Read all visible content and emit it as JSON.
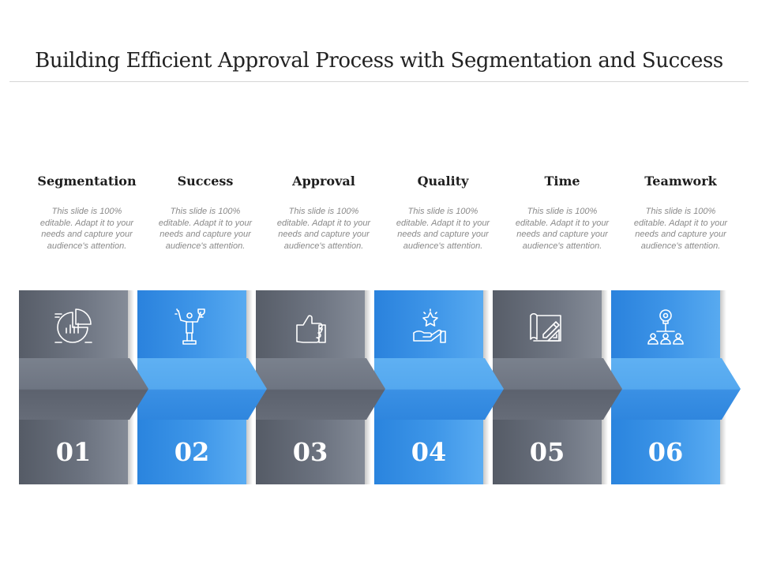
{
  "title": "Building Efficient Approval Process with Segmentation and Success",
  "colors": {
    "gray": "#6b7280",
    "blue": "#3b93e6"
  },
  "steps": [
    {
      "heading": "Segmentation",
      "desc": "This slide is 100% editable. Adapt it to your needs and capture your audience's attention.",
      "number": "01",
      "icon": "segmentation-chart-icon",
      "color": "gray"
    },
    {
      "heading": "Success",
      "desc": "This slide is 100% editable. Adapt it to your needs and capture your audience's attention.",
      "number": "02",
      "icon": "trophy-winner-icon",
      "color": "blue"
    },
    {
      "heading": "Approval",
      "desc": "This slide is 100% editable. Adapt it to your needs and capture your audience's attention.",
      "number": "03",
      "icon": "thumbs-up-icon",
      "color": "gray"
    },
    {
      "heading": "Quality",
      "desc": "This slide is 100% editable. Adapt it to your needs and capture your audience's attention.",
      "number": "04",
      "icon": "star-hand-icon",
      "color": "blue"
    },
    {
      "heading": "Time",
      "desc": "This slide is 100% editable. Adapt it to your needs and capture your audience's attention.",
      "number": "05",
      "icon": "blueprint-pencil-icon",
      "color": "gray"
    },
    {
      "heading": "Teamwork",
      "desc": "This slide is 100% editable. Adapt it to your needs and capture your audience's attention.",
      "number": "06",
      "icon": "idea-team-icon",
      "color": "blue"
    }
  ]
}
